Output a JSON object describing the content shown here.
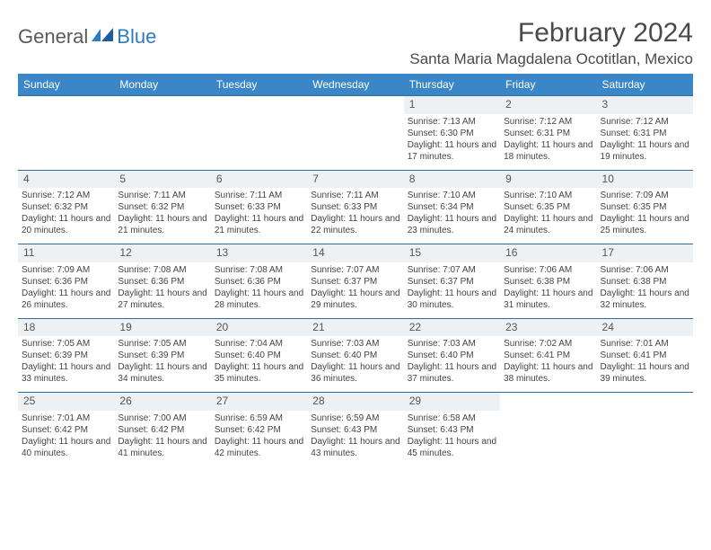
{
  "brand": {
    "part1": "General",
    "part2": "Blue"
  },
  "title": "February 2024",
  "location": "Santa Maria Magdalena Ocotitlan, Mexico",
  "colors": {
    "header_bg": "#3b86c6",
    "header_text": "#ffffff",
    "border": "#2f6ea3",
    "daynum_bg": "#eef1f3",
    "text": "#444444"
  },
  "day_headers": [
    "Sunday",
    "Monday",
    "Tuesday",
    "Wednesday",
    "Thursday",
    "Friday",
    "Saturday"
  ],
  "weeks": [
    [
      null,
      null,
      null,
      null,
      {
        "n": "1",
        "sr": "7:13 AM",
        "ss": "6:30 PM",
        "dl": "11 hours and 17 minutes."
      },
      {
        "n": "2",
        "sr": "7:12 AM",
        "ss": "6:31 PM",
        "dl": "11 hours and 18 minutes."
      },
      {
        "n": "3",
        "sr": "7:12 AM",
        "ss": "6:31 PM",
        "dl": "11 hours and 19 minutes."
      }
    ],
    [
      {
        "n": "4",
        "sr": "7:12 AM",
        "ss": "6:32 PM",
        "dl": "11 hours and 20 minutes."
      },
      {
        "n": "5",
        "sr": "7:11 AM",
        "ss": "6:32 PM",
        "dl": "11 hours and 21 minutes."
      },
      {
        "n": "6",
        "sr": "7:11 AM",
        "ss": "6:33 PM",
        "dl": "11 hours and 21 minutes."
      },
      {
        "n": "7",
        "sr": "7:11 AM",
        "ss": "6:33 PM",
        "dl": "11 hours and 22 minutes."
      },
      {
        "n": "8",
        "sr": "7:10 AM",
        "ss": "6:34 PM",
        "dl": "11 hours and 23 minutes."
      },
      {
        "n": "9",
        "sr": "7:10 AM",
        "ss": "6:35 PM",
        "dl": "11 hours and 24 minutes."
      },
      {
        "n": "10",
        "sr": "7:09 AM",
        "ss": "6:35 PM",
        "dl": "11 hours and 25 minutes."
      }
    ],
    [
      {
        "n": "11",
        "sr": "7:09 AM",
        "ss": "6:36 PM",
        "dl": "11 hours and 26 minutes."
      },
      {
        "n": "12",
        "sr": "7:08 AM",
        "ss": "6:36 PM",
        "dl": "11 hours and 27 minutes."
      },
      {
        "n": "13",
        "sr": "7:08 AM",
        "ss": "6:36 PM",
        "dl": "11 hours and 28 minutes."
      },
      {
        "n": "14",
        "sr": "7:07 AM",
        "ss": "6:37 PM",
        "dl": "11 hours and 29 minutes."
      },
      {
        "n": "15",
        "sr": "7:07 AM",
        "ss": "6:37 PM",
        "dl": "11 hours and 30 minutes."
      },
      {
        "n": "16",
        "sr": "7:06 AM",
        "ss": "6:38 PM",
        "dl": "11 hours and 31 minutes."
      },
      {
        "n": "17",
        "sr": "7:06 AM",
        "ss": "6:38 PM",
        "dl": "11 hours and 32 minutes."
      }
    ],
    [
      {
        "n": "18",
        "sr": "7:05 AM",
        "ss": "6:39 PM",
        "dl": "11 hours and 33 minutes."
      },
      {
        "n": "19",
        "sr": "7:05 AM",
        "ss": "6:39 PM",
        "dl": "11 hours and 34 minutes."
      },
      {
        "n": "20",
        "sr": "7:04 AM",
        "ss": "6:40 PM",
        "dl": "11 hours and 35 minutes."
      },
      {
        "n": "21",
        "sr": "7:03 AM",
        "ss": "6:40 PM",
        "dl": "11 hours and 36 minutes."
      },
      {
        "n": "22",
        "sr": "7:03 AM",
        "ss": "6:40 PM",
        "dl": "11 hours and 37 minutes."
      },
      {
        "n": "23",
        "sr": "7:02 AM",
        "ss": "6:41 PM",
        "dl": "11 hours and 38 minutes."
      },
      {
        "n": "24",
        "sr": "7:01 AM",
        "ss": "6:41 PM",
        "dl": "11 hours and 39 minutes."
      }
    ],
    [
      {
        "n": "25",
        "sr": "7:01 AM",
        "ss": "6:42 PM",
        "dl": "11 hours and 40 minutes."
      },
      {
        "n": "26",
        "sr": "7:00 AM",
        "ss": "6:42 PM",
        "dl": "11 hours and 41 minutes."
      },
      {
        "n": "27",
        "sr": "6:59 AM",
        "ss": "6:42 PM",
        "dl": "11 hours and 42 minutes."
      },
      {
        "n": "28",
        "sr": "6:59 AM",
        "ss": "6:43 PM",
        "dl": "11 hours and 43 minutes."
      },
      {
        "n": "29",
        "sr": "6:58 AM",
        "ss": "6:43 PM",
        "dl": "11 hours and 45 minutes."
      },
      null,
      null
    ]
  ],
  "labels": {
    "sunrise": "Sunrise: ",
    "sunset": "Sunset: ",
    "daylight": "Daylight: "
  }
}
